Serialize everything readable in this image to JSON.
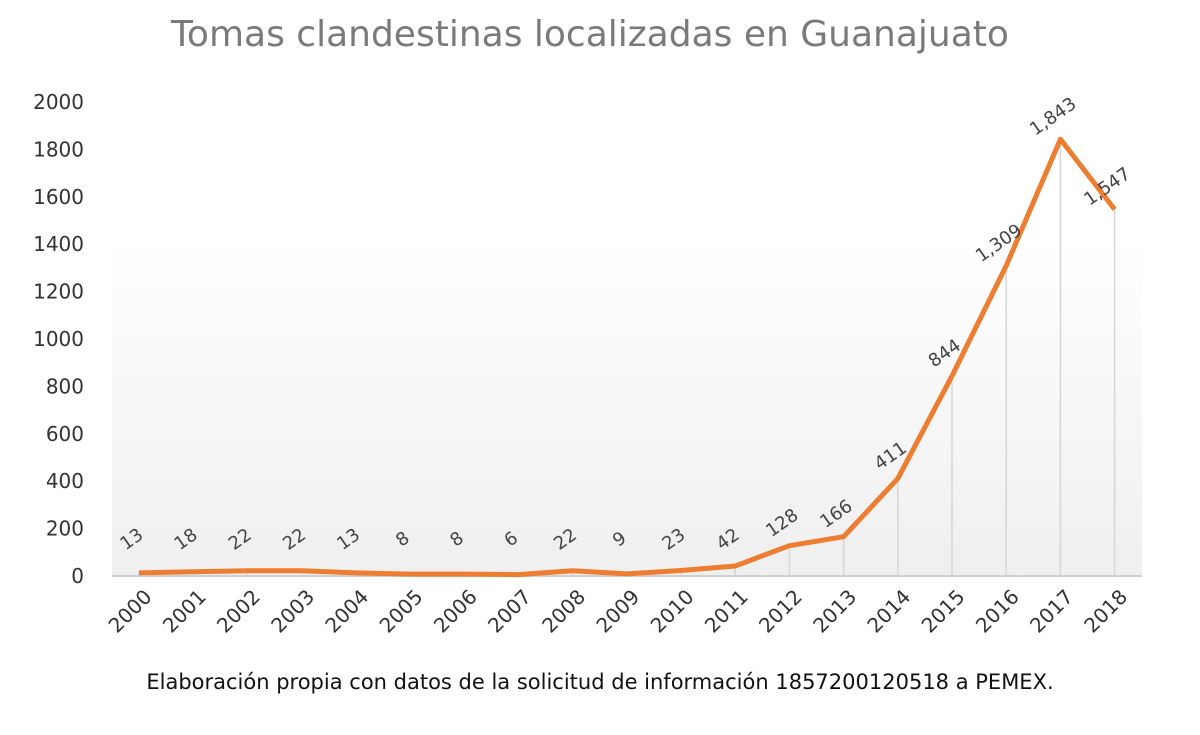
{
  "chart_data": {
    "type": "line",
    "title": "Tomas clandestinas localizadas en Guanajuato",
    "xlabel": "",
    "ylabel": "",
    "categories": [
      "2000",
      "2001",
      "2002",
      "2003",
      "2004",
      "2005",
      "2006",
      "2007",
      "2008",
      "2009",
      "2010",
      "2011",
      "2012",
      "2013",
      "2014",
      "2015",
      "2016",
      "2017",
      "2018"
    ],
    "values": [
      13,
      18,
      22,
      22,
      13,
      8,
      8,
      6,
      22,
      9,
      23,
      42,
      128,
      166,
      411,
      844,
      1309,
      1843,
      1547
    ],
    "data_labels": [
      "13",
      "18",
      "22",
      "22",
      "13",
      "8",
      "8",
      "6",
      "22",
      "9",
      "23",
      "42",
      "128",
      "166",
      "411",
      "844",
      "1,309",
      "1,843",
      "1,547"
    ],
    "ylim": [
      0,
      2000
    ],
    "yticks": [
      "0",
      "200",
      "400",
      "600",
      "800",
      "1000",
      "1200",
      "1400",
      "1600",
      "1800",
      "2000"
    ],
    "grid": false,
    "drop_lines": true,
    "line_color": "#ed7d31"
  },
  "source_note": "Elaboración propia con datos de la solicitud de información 1857200120518 a PEMEX."
}
